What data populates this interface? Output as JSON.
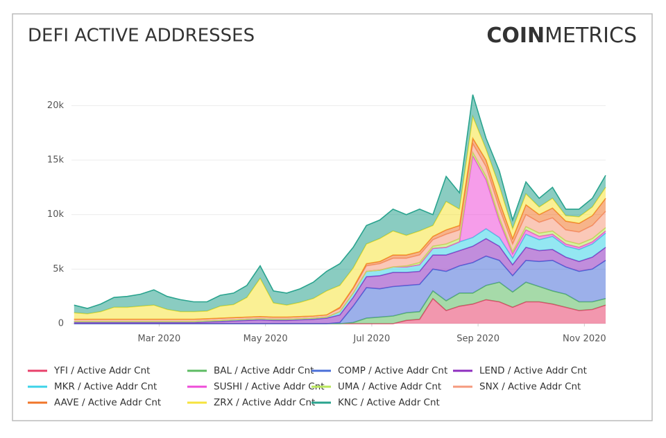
{
  "brand": {
    "bold": "COIN",
    "light": "METRICS"
  },
  "chart_data": {
    "type": "stacked_area",
    "title": "DEFI ACTIVE ADDRESSES",
    "x": [
      1.4,
      1.65,
      1.9,
      2.15,
      2.4,
      2.65,
      2.9,
      3.15,
      3.4,
      3.65,
      3.9,
      4.15,
      4.4,
      4.65,
      4.9,
      5.15,
      5.4,
      5.65,
      5.9,
      6.15,
      6.4,
      6.65,
      6.9,
      7.15,
      7.4,
      7.65,
      7.9,
      8.15,
      8.4,
      8.65,
      8.9,
      9.15,
      9.4,
      9.65,
      9.9,
      10.15,
      10.4,
      10.65,
      10.9,
      11.15,
      11.4
    ],
    "xlim": [
      1.35,
      11.4
    ],
    "xticks": [
      {
        "value": 3,
        "label": "Mar 2020"
      },
      {
        "value": 5,
        "label": "May 2020"
      },
      {
        "value": 7,
        "label": "Jul 2020"
      },
      {
        "value": 9,
        "label": "Sep 2020"
      },
      {
        "value": 11,
        "label": "Nov 2020"
      }
    ],
    "ylim": [
      0,
      22500
    ],
    "yticks": [
      0,
      {
        "value": 5000,
        "label": "5k"
      },
      {
        "value": 10000,
        "label": "10k"
      },
      {
        "value": 15000,
        "label": "15k"
      },
      {
        "value": 20000,
        "label": "20k"
      }
    ],
    "grid": true,
    "series": [
      {
        "name": "YFI / Active Addr Cnt",
        "color": "#e8416b",
        "values": [
          0,
          0,
          0,
          0,
          0,
          0,
          0,
          0,
          0,
          0,
          0,
          0,
          0,
          0,
          0,
          0,
          0,
          0,
          0,
          0,
          0,
          0,
          0,
          0,
          0,
          300,
          400,
          2300,
          1200,
          1600,
          1800,
          2200,
          2000,
          1500,
          2000,
          2000,
          1800,
          1500,
          1200,
          1300,
          1700
        ]
      },
      {
        "name": "BAL / Active Addr Cnt",
        "color": "#5dbb63",
        "values": [
          0,
          0,
          0,
          0,
          0,
          0,
          0,
          0,
          0,
          0,
          0,
          0,
          0,
          0,
          0,
          0,
          0,
          0,
          0,
          0,
          0,
          100,
          500,
          600,
          700,
          700,
          700,
          700,
          900,
          1200,
          1000,
          1300,
          1800,
          1400,
          1800,
          1400,
          1200,
          1200,
          800,
          700,
          600
        ]
      },
      {
        "name": "COMP / Active Addr Cnt",
        "color": "#4a6fd8",
        "values": [
          0,
          0,
          0,
          0,
          0,
          0,
          0,
          0,
          0,
          0,
          0,
          0,
          0,
          0,
          0,
          0,
          0,
          0,
          0,
          0,
          100,
          1500,
          2800,
          2600,
          2700,
          2500,
          2500,
          2000,
          2700,
          2500,
          2800,
          2700,
          2000,
          1500,
          2000,
          2300,
          2800,
          2500,
          2800,
          3000,
          3500
        ]
      },
      {
        "name": "LEND / Active Addr Cnt",
        "color": "#8e2fbf",
        "values": [
          100,
          100,
          100,
          100,
          100,
          100,
          100,
          100,
          100,
          100,
          150,
          200,
          250,
          300,
          350,
          300,
          300,
          350,
          400,
          500,
          700,
          800,
          1000,
          1200,
          1300,
          1200,
          1200,
          1300,
          1500,
          1400,
          1500,
          1600,
          1300,
          1000,
          1200,
          1000,
          1000,
          900,
          900,
          1100,
          1200
        ]
      },
      {
        "name": "MKR / Active Addr Cnt",
        "color": "#3cd3e8",
        "values": [
          100,
          100,
          100,
          100,
          100,
          100,
          100,
          100,
          100,
          100,
          100,
          100,
          100,
          100,
          100,
          100,
          100,
          100,
          100,
          100,
          300,
          400,
          500,
          500,
          500,
          500,
          600,
          600,
          700,
          800,
          800,
          900,
          800,
          600,
          1200,
          1000,
          1200,
          1000,
          1100,
          1200,
          1300
        ]
      },
      {
        "name": "SUSHI / Active Addr Cnt",
        "color": "#ee4cd8",
        "values": [
          0,
          0,
          0,
          0,
          0,
          0,
          0,
          0,
          0,
          0,
          0,
          0,
          0,
          0,
          0,
          0,
          0,
          0,
          0,
          0,
          0,
          0,
          0,
          0,
          0,
          0,
          0,
          0,
          0,
          0,
          7500,
          4500,
          1500,
          400,
          400,
          300,
          200,
          200,
          200,
          200,
          200
        ]
      },
      {
        "name": "UMA / Active Addr Cnt",
        "color": "#b8e65a",
        "values": [
          0,
          0,
          0,
          0,
          0,
          0,
          0,
          0,
          0,
          0,
          0,
          0,
          0,
          0,
          0,
          0,
          0,
          0,
          0,
          0,
          0,
          0,
          0,
          0,
          0,
          100,
          200,
          200,
          300,
          300,
          300,
          300,
          300,
          200,
          300,
          300,
          300,
          300,
          300,
          300,
          300
        ]
      },
      {
        "name": "SNX / Active Addr Cnt",
        "color": "#f59a7d",
        "values": [
          200,
          200,
          200,
          200,
          200,
          200,
          200,
          200,
          200,
          200,
          200,
          200,
          200,
          200,
          200,
          200,
          200,
          200,
          200,
          200,
          300,
          400,
          500,
          600,
          800,
          700,
          700,
          600,
          900,
          800,
          800,
          900,
          900,
          700,
          1100,
          1000,
          1200,
          1000,
          1100,
          1200,
          1500
        ]
      },
      {
        "name": "AAVE / Active Addr Cnt",
        "color": "#f0762a",
        "values": [
          0,
          0,
          0,
          0,
          0,
          0,
          0,
          0,
          0,
          0,
          0,
          0,
          0,
          0,
          0,
          0,
          0,
          0,
          0,
          0,
          100,
          100,
          200,
          200,
          300,
          300,
          300,
          300,
          400,
          400,
          500,
          600,
          600,
          500,
          900,
          700,
          900,
          800,
          800,
          900,
          1200
        ]
      },
      {
        "name": "ZRX / Active Addr Cnt",
        "color": "#f6e33c",
        "values": [
          600,
          500,
          700,
          1100,
          1100,
          1200,
          1300,
          900,
          700,
          700,
          700,
          1100,
          1200,
          1800,
          3500,
          1300,
          1100,
          1300,
          1600,
          2200,
          2000,
          1800,
          1800,
          2100,
          2200,
          1800,
          1900,
          1000,
          2600,
          1500,
          2000,
          1000,
          1400,
          900,
          1000,
          700,
          900,
          500,
          600,
          800,
          1000
        ]
      },
      {
        "name": "KNC / Active Addr Cnt",
        "color": "#29a38e",
        "values": [
          700,
          500,
          700,
          900,
          1000,
          1100,
          1400,
          1200,
          1100,
          900,
          850,
          1000,
          1050,
          1100,
          1150,
          1100,
          1100,
          1250,
          1500,
          1800,
          2000,
          1900,
          1700,
          1700,
          2000,
          1900,
          2000,
          1000,
          2300,
          1500,
          2000,
          1000,
          1400,
          800,
          1100,
          800,
          1000,
          600,
          700,
          800,
          1100
        ]
      }
    ]
  }
}
